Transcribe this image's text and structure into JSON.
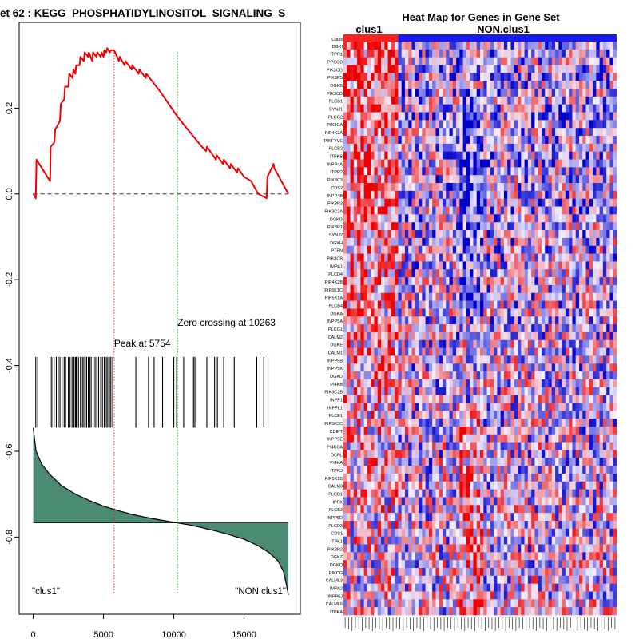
{
  "chart_data": [
    {
      "type": "line",
      "title": "et  62 : KEGG_PHOSPHATIDYLINOSITOL_SIGNALING_S",
      "xlabel": "",
      "ylabel": "",
      "xlim": [
        -1000,
        19000
      ],
      "ylim": [
        -0.98,
        0.4
      ],
      "x_ticks": [
        0,
        5000,
        10000,
        15000
      ],
      "x_tick_labels": [
        "0",
        "5000",
        "10000",
        "15000"
      ],
      "y_ticks": [
        0.2,
        0.0,
        -0.2,
        -0.4,
        -0.6,
        -0.8
      ],
      "y_tick_labels": [
        "0.2",
        "0.0",
        "-0.2",
        "-0.4",
        "-0.6",
        "-0.8"
      ],
      "grid": false,
      "enrichment_series": {
        "x": [
          0,
          180,
          230,
          1200,
          1240,
          1500,
          1560,
          1900,
          1960,
          2200,
          2260,
          2500,
          2560,
          2800,
          2860,
          3000,
          3060,
          3300,
          3360,
          3600,
          3660,
          3900,
          3960,
          4200,
          4260,
          4500,
          4560,
          4800,
          4860,
          5000,
          5060,
          5200,
          5260,
          5450,
          5510,
          5754,
          6100,
          6150,
          6500,
          6560,
          7000,
          7050,
          7500,
          7550,
          8000,
          8050,
          9000,
          10263,
          11000,
          12000,
          12300,
          12360,
          13000,
          13060,
          13500,
          13560,
          14000,
          14060,
          14500,
          14560,
          15000,
          15500,
          16000,
          16600,
          16660,
          17100,
          17150,
          18150
        ],
        "y": [
          0.0,
          -0.01,
          0.08,
          0.03,
          0.11,
          0.12,
          0.15,
          0.17,
          0.21,
          0.22,
          0.25,
          0.25,
          0.28,
          0.27,
          0.29,
          0.28,
          0.3,
          0.3,
          0.32,
          0.31,
          0.33,
          0.32,
          0.33,
          0.31,
          0.33,
          0.32,
          0.33,
          0.32,
          0.33,
          0.32,
          0.335,
          0.33,
          0.34,
          0.33,
          0.335,
          0.335,
          0.31,
          0.32,
          0.3,
          0.31,
          0.29,
          0.3,
          0.28,
          0.29,
          0.27,
          0.28,
          0.24,
          0.18,
          0.15,
          0.11,
          0.1,
          0.11,
          0.08,
          0.09,
          0.07,
          0.08,
          0.06,
          0.07,
          0.05,
          0.06,
          0.04,
          0.03,
          0.0,
          -0.01,
          0.04,
          0.07,
          0.06,
          0.0
        ]
      },
      "baseline_y": 0.0,
      "hit_positions": [
        180,
        320,
        1200,
        1320,
        1480,
        1640,
        1780,
        1900,
        2050,
        2200,
        2300,
        2500,
        2620,
        2760,
        2900,
        3000,
        3060,
        3220,
        3360,
        3500,
        3600,
        3700,
        3800,
        3920,
        4020,
        4120,
        4260,
        4400,
        4520,
        4650,
        4800,
        4920,
        5050,
        5200,
        5300,
        5420,
        5520,
        5650,
        7300,
        8200,
        8600,
        9200,
        10000,
        10200,
        10700,
        11400,
        11500,
        12350,
        12900,
        13100,
        13550,
        14300,
        15900,
        16400,
        16700
      ],
      "hit_band": [
        -0.38,
        -0.545
      ],
      "ranked_metric": {
        "x": [
          0,
          200,
          600,
          1200,
          2000,
          3000,
          4000,
          5000,
          6000,
          7000,
          8000,
          9000,
          10000,
          10263,
          11000,
          12000,
          13000,
          14000,
          15000,
          16000,
          16800,
          17400,
          17800,
          18000,
          18150
        ],
        "y": [
          -0.545,
          -0.6,
          -0.63,
          -0.655,
          -0.68,
          -0.7,
          -0.715,
          -0.728,
          -0.738,
          -0.747,
          -0.754,
          -0.76,
          -0.7655,
          -0.767,
          -0.771,
          -0.778,
          -0.786,
          -0.795,
          -0.805,
          -0.82,
          -0.837,
          -0.855,
          -0.88,
          -0.91,
          -0.935
        ],
        "zero_level": -0.767
      },
      "markers": [
        {
          "name": "peak",
          "x": 5754,
          "label": "Peak at 5754",
          "color": "#dd2222"
        },
        {
          "name": "zero-crossing",
          "x": 10263,
          "label": "Zero crossing at 10263",
          "color": "#22aa22"
        }
      ],
      "corner_labels": {
        "left": "\"clus1\"",
        "right": "\"NON.clus1\""
      },
      "colors": {
        "enrichment": "#ee0000",
        "hits": "#000000",
        "metric_fill": "#4a8a70"
      }
    },
    {
      "type": "heatmap",
      "title": "Heat Map for Genes in Gene Set",
      "class_labels": [
        "clus1",
        "NON.clus1"
      ],
      "class_row_label": "Class",
      "class_split": 0.2,
      "colors": {
        "class_a": "#ff2020",
        "class_b": "#1a1aee",
        "high": "#ee0000",
        "low": "#0000cc",
        "mid": "#f4f0ff"
      },
      "rows": [
        "DGKI",
        "ITPR1",
        "PPKOB",
        "PIK3CG",
        "PIK3R5",
        "DGKB",
        "PIK3CD",
        "PLCB1",
        "SYNJ1",
        "PLCG2",
        "PIK3CA",
        "PIP4K2A",
        "PIKFYVE",
        "PLCB2",
        "ITPKB",
        "INPP4A",
        "ITPR2",
        "PIK3C3",
        "CDS2",
        "INPP4B",
        "PIK3R3",
        "PIK3C2A",
        "DGKG",
        "PIK3R1",
        "SYNJ2",
        "DGKH",
        "PTEN",
        "PIK3CB",
        "IMPA1",
        "PLCD4",
        "PIP4K2B",
        "PIP5K1C",
        "PIP5K1A",
        "PLCB4",
        "DGKA",
        "INPP5A",
        "PLCG1",
        "CALM2",
        "DGKE",
        "CALM1",
        "INPP5B",
        "INPP5K",
        "DGKD",
        "PI4KB",
        "PIK3C2B",
        "INPP1",
        "INPPL1",
        "PLCE1",
        "PIP5K3C",
        "CDIPT",
        "INPP5E",
        "PI4KCA",
        "OCRL",
        "PI4KA",
        "ITPR3",
        "PIP5K1B",
        "CALM3",
        "PLCD1",
        "IPPK",
        "PLCB3",
        "INPP5D",
        "PLCD3",
        "CDS1",
        "ITPK1",
        "PIK3R2",
        "DGKZ",
        "DGKQ",
        "PIKCG",
        "CALML3",
        "IMPA2",
        "INPP5J",
        "CALML6",
        "ITPKA"
      ]
    }
  ]
}
